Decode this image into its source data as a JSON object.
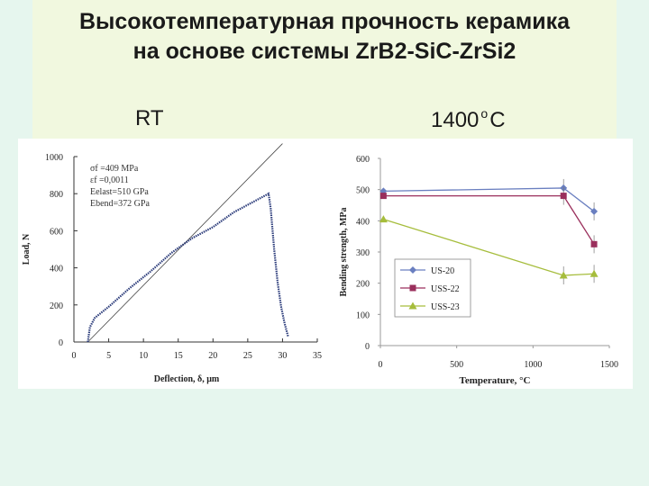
{
  "slide": {
    "title_line1": "Высокотемпературная прочность керамика",
    "title_line2": "на основе системы ZrB2-SiC-ZrSi2",
    "label_left": "RT",
    "label_right_pre": "1400",
    "label_right_sup": "o",
    "label_right_post": "C"
  },
  "chart_data": [
    {
      "type": "line",
      "xlabel": "Deflection,  δ, μm",
      "ylabel": "Load, N",
      "xlim": [
        0,
        35
      ],
      "ylim": [
        0,
        1000
      ],
      "xticks": [
        "0",
        "5",
        "10",
        "15",
        "20",
        "25",
        "30",
        "35"
      ],
      "yticks": [
        "0",
        "200",
        "400",
        "600",
        "800",
        "1000"
      ],
      "annotations": [
        "σf =409 MPa",
        "εf =0,0011",
        "Eelast=510 GPa",
        "Ebend=372 GPa"
      ],
      "series": [
        {
          "x": [
            2,
            2.3,
            3,
            5,
            8,
            11,
            14,
            17,
            20,
            23,
            26,
            27.5,
            28,
            28.3,
            28.8,
            29.3,
            29.8,
            30.3,
            30.8
          ],
          "y": [
            0,
            80,
            130,
            190,
            290,
            380,
            480,
            560,
            620,
            700,
            760,
            790,
            800,
            720,
            500,
            320,
            190,
            100,
            30
          ]
        }
      ],
      "reference_line": {
        "x": [
          2,
          30
        ],
        "y": [
          0,
          1070
        ]
      }
    },
    {
      "type": "line",
      "xlabel": "Temperature, °C",
      "ylabel": "Bending strength, MPa",
      "xlim": [
        0,
        1500
      ],
      "ylim": [
        0,
        600
      ],
      "xticks": [
        "0",
        "500",
        "1000",
        "1500"
      ],
      "yticks": [
        "0",
        "100",
        "200",
        "300",
        "400",
        "500",
        "600"
      ],
      "legend_position": "lower-left",
      "series": [
        {
          "name": "US-20",
          "color": "#6a7fc0",
          "marker": "diamond",
          "x": [
            20,
            1200,
            1400
          ],
          "y": [
            495,
            505,
            430
          ]
        },
        {
          "name": "USS-22",
          "color": "#9a2f5c",
          "marker": "square",
          "x": [
            20,
            1200,
            1400
          ],
          "y": [
            480,
            480,
            325
          ]
        },
        {
          "name": "USS-23",
          "color": "#a6bd3c",
          "marker": "triangle",
          "x": [
            20,
            1200,
            1400
          ],
          "y": [
            405,
            225,
            230
          ]
        }
      ]
    }
  ]
}
